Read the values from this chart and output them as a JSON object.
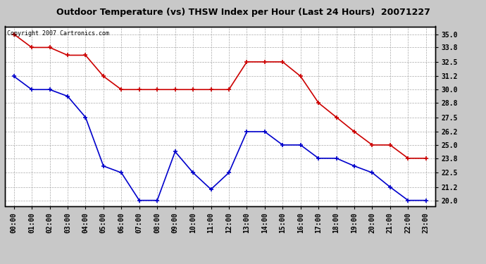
{
  "title": "Outdoor Temperature (vs) THSW Index per Hour (Last 24 Hours)  20071227",
  "copyright_text": "Copyright 2007 Cartronics.com",
  "hours": [
    "00:00",
    "01:00",
    "02:00",
    "03:00",
    "04:00",
    "05:00",
    "06:00",
    "07:00",
    "08:00",
    "09:00",
    "10:00",
    "11:00",
    "12:00",
    "13:00",
    "14:00",
    "15:00",
    "16:00",
    "17:00",
    "18:00",
    "19:00",
    "20:00",
    "21:00",
    "22:00",
    "23:00"
  ],
  "red_data": [
    35.0,
    33.8,
    33.8,
    33.1,
    33.1,
    31.2,
    30.0,
    30.0,
    30.0,
    30.0,
    30.0,
    30.0,
    30.0,
    32.5,
    32.5,
    32.5,
    31.2,
    28.8,
    27.5,
    26.2,
    25.0,
    25.0,
    23.8,
    23.8
  ],
  "blue_data": [
    31.2,
    30.0,
    30.0,
    29.4,
    27.5,
    23.1,
    22.5,
    20.0,
    20.0,
    24.4,
    22.5,
    21.0,
    22.5,
    26.2,
    26.2,
    25.0,
    25.0,
    23.8,
    23.8,
    23.1,
    22.5,
    21.2,
    20.0,
    20.0
  ],
  "ylim": [
    19.5,
    35.7
  ],
  "yticks": [
    20.0,
    21.2,
    22.5,
    23.8,
    25.0,
    26.2,
    27.5,
    28.8,
    30.0,
    31.2,
    32.5,
    33.8,
    35.0
  ],
  "red_color": "#cc0000",
  "blue_color": "#0000cc",
  "bg_color": "#c8c8c8",
  "plot_bg_color": "#ffffff",
  "grid_color": "#aaaaaa",
  "title_fontsize": 9,
  "copyright_fontsize": 6,
  "tick_fontsize": 7,
  "marker": "+"
}
